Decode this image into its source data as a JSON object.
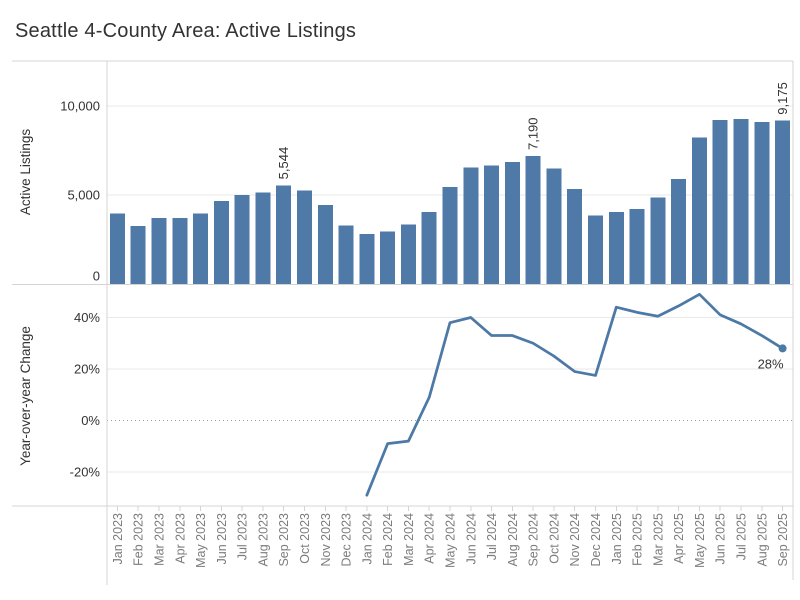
{
  "title": "Seattle 4-County Area: Active Listings",
  "colors": {
    "bar": "#4f7aa8",
    "line": "#4d79a6",
    "grid": "#e9e9e9",
    "frame": "#d4d4d4",
    "zero_line": "#9b9b9b",
    "tick": "#d4d4d4",
    "label_dark": "#333333",
    "label_gray": "#7c7c7c"
  },
  "chart_data": [
    {
      "type": "bar",
      "ylabel": "Active Listings",
      "ylim": [
        0,
        12500
      ],
      "grid": true,
      "legend": "none",
      "yticks": [
        {
          "label": "10,000",
          "value": 10000
        },
        {
          "label": "5,000",
          "value": 5000
        },
        {
          "label": "0",
          "value": 0
        }
      ],
      "categories": [
        "Jan 2023",
        "Feb 2023",
        "Mar 2023",
        "Apr 2023",
        "May 2023",
        "Jun 2023",
        "Jul 2023",
        "Aug 2023",
        "Sep 2023",
        "Oct 2023",
        "Nov 2023",
        "Dec 2023",
        "Jan 2024",
        "Feb 2024",
        "Mar 2024",
        "Apr 2024",
        "May 2024",
        "Jun 2024",
        "Jul 2024",
        "Aug 2024",
        "Sep 2024",
        "Oct 2024",
        "Nov 2024",
        "Dec 2024",
        "Jan 2025",
        "Feb 2025",
        "Mar 2025",
        "Apr 2025",
        "May 2025",
        "Jun 2025",
        "Jul 2025",
        "Aug 2025",
        "Sep 2025"
      ],
      "values": [
        3950,
        3250,
        3700,
        3700,
        3950,
        4650,
        5000,
        5150,
        5544,
        5250,
        4450,
        3300,
        2800,
        2950,
        3350,
        4050,
        5450,
        6550,
        6650,
        6850,
        7190,
        6500,
        5350,
        3850,
        4050,
        4200,
        4850,
        5900,
        8220,
        9200,
        9270,
        9100,
        9175
      ],
      "point_labels": [
        {
          "month": "Sep 2023",
          "text": "5,544"
        },
        {
          "month": "Sep 2024",
          "text": "7,190"
        },
        {
          "month": "Sep 2025",
          "text": "9,175"
        }
      ]
    },
    {
      "type": "line",
      "ylabel": "Year-over-year Change",
      "ylim": [
        -33,
        53
      ],
      "grid": true,
      "legend": "none",
      "yticks": [
        {
          "label": "40%",
          "value": 40
        },
        {
          "label": "20%",
          "value": 20
        },
        {
          "label": "0%",
          "value": 0
        },
        {
          "label": "-20%",
          "value": -20
        }
      ],
      "categories": [
        "Jan 2023",
        "Feb 2023",
        "Mar 2023",
        "Apr 2023",
        "May 2023",
        "Jun 2023",
        "Jul 2023",
        "Aug 2023",
        "Sep 2023",
        "Oct 2023",
        "Nov 2023",
        "Dec 2023",
        "Jan 2024",
        "Feb 2024",
        "Mar 2024",
        "Apr 2024",
        "May 2024",
        "Jun 2024",
        "Jul 2024",
        "Aug 2024",
        "Sep 2024",
        "Oct 2024",
        "Nov 2024",
        "Dec 2024",
        "Jan 2025",
        "Feb 2025",
        "Mar 2025",
        "Apr 2025",
        "May 2025",
        "Jun 2025",
        "Jul 2025",
        "Aug 2025",
        "Sep 2025"
      ],
      "values": [
        null,
        null,
        null,
        null,
        null,
        null,
        null,
        null,
        null,
        null,
        null,
        null,
        -29,
        -9,
        -8,
        9,
        38,
        40,
        33,
        33,
        30,
        25,
        19,
        17.5,
        44,
        42,
        40.5,
        44.5,
        49,
        41,
        37.5,
        33,
        28
      ],
      "end_label": "28%"
    }
  ]
}
